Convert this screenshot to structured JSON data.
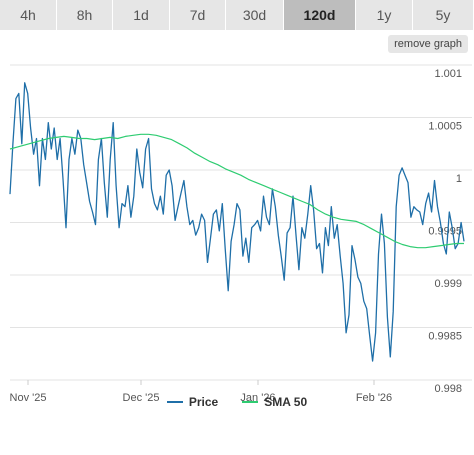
{
  "tabs": [
    {
      "label": "4h",
      "active": false
    },
    {
      "label": "8h",
      "active": false
    },
    {
      "label": "1d",
      "active": false
    },
    {
      "label": "7d",
      "active": false
    },
    {
      "label": "30d",
      "active": false
    },
    {
      "label": "120d",
      "active": true
    },
    {
      "label": "1y",
      "active": false
    },
    {
      "label": "5y",
      "active": false
    }
  ],
  "remove_graph_label": "remove graph",
  "chart_data": {
    "type": "line",
    "x_ticks": [
      "Nov '25",
      "Dec '25",
      "Jan '26",
      "Feb '26"
    ],
    "y_ticks": [
      "1.001",
      "1.0005",
      "1",
      "0.9995",
      "0.999",
      "0.9985",
      "0.998"
    ],
    "ylim": [
      0.998,
      1.001
    ],
    "grid": true,
    "legend_position": "bottom",
    "series": [
      {
        "name": "Price",
        "color": "#1f6fa8",
        "values": [
          0.99977,
          1.00025,
          1.00068,
          1.00073,
          1.00025,
          1.00083,
          1.00073,
          1.0004,
          1.00015,
          1.0003,
          0.99985,
          1.0003,
          1.0001,
          1.00045,
          1.0002,
          1.0004,
          1.0001,
          1.0003,
          0.9999,
          0.99945,
          1.0001,
          1.0003,
          1.00015,
          1.00038,
          1.0003,
          1.00005,
          0.99988,
          0.9997,
          0.9996,
          0.99948,
          1.0001,
          1.0003,
          0.99988,
          0.99955,
          1.0001,
          1.00045,
          0.99985,
          0.99945,
          0.99968,
          0.99965,
          0.99985,
          0.99955,
          0.99975,
          1.0002,
          0.99998,
          0.99983,
          1.0002,
          1.0003,
          0.99982,
          0.99968,
          0.99962,
          0.99975,
          0.99958,
          0.99995,
          1.0,
          0.99985,
          0.99952,
          0.99965,
          0.99978,
          0.9999,
          0.99965,
          0.99948,
          0.99952,
          0.99938,
          0.99945,
          0.99958,
          0.99952,
          0.99912,
          0.99935,
          0.99958,
          0.99962,
          0.99942,
          0.99968,
          0.99925,
          0.99885,
          0.99932,
          0.99948,
          0.99968,
          0.99962,
          0.99918,
          0.99935,
          0.99912,
          0.99945,
          0.99948,
          0.99952,
          0.99942,
          0.99975,
          0.99955,
          0.99948,
          0.99982,
          0.99965,
          0.99938,
          0.99918,
          0.99895,
          0.9994,
          0.99945,
          0.99975,
          0.99938,
          0.99905,
          0.99945,
          0.99935,
          0.99958,
          0.99985,
          0.99962,
          0.99925,
          0.9993,
          0.99902,
          0.99945,
          0.99928,
          0.99965,
          0.99935,
          0.99948,
          0.99918,
          0.99892,
          0.99845,
          0.99862,
          0.99928,
          0.99915,
          0.99898,
          0.99892,
          0.99875,
          0.99868,
          0.99842,
          0.99818,
          0.99845,
          0.9992,
          0.99958,
          0.9993,
          0.9986,
          0.99822,
          0.99865,
          0.99965,
          0.99995,
          1.00002,
          0.99995,
          0.99988,
          0.99955,
          0.99965,
          0.99962,
          0.9996,
          0.99948,
          0.99968,
          0.99978,
          0.9996,
          0.9999,
          0.99965,
          0.9995,
          0.9993,
          0.9992,
          0.9996,
          0.99945,
          0.99925,
          0.9993,
          0.9995,
          0.99932
        ]
      },
      {
        "name": "SMA 50",
        "color": "#2ecc71",
        "values": [
          1.0002,
          1.00022,
          1.00024,
          1.00026,
          1.00028,
          1.0003,
          1.00031,
          1.00032,
          1.00031,
          1.0003,
          1.0003,
          1.00029,
          1.0003,
          1.00031,
          1.0003,
          1.00032,
          1.00033,
          1.00034,
          1.00034,
          1.00033,
          1.00031,
          1.00029,
          1.00025,
          1.00021,
          1.00016,
          1.00012,
          1.00008,
          1.00005,
          1.00001,
          0.99998,
          0.99995,
          0.99991,
          0.99988,
          0.99985,
          0.99982,
          0.99979,
          0.99976,
          0.99973,
          0.9997,
          0.99967,
          0.99962,
          0.99958,
          0.99955,
          0.99953,
          0.99952,
          0.99951,
          0.99948,
          0.99944,
          0.9994,
          0.99936,
          0.99932,
          0.99929,
          0.99927,
          0.99926,
          0.99926,
          0.99927,
          0.99928,
          0.99929,
          0.9993,
          0.9993
        ]
      }
    ]
  }
}
